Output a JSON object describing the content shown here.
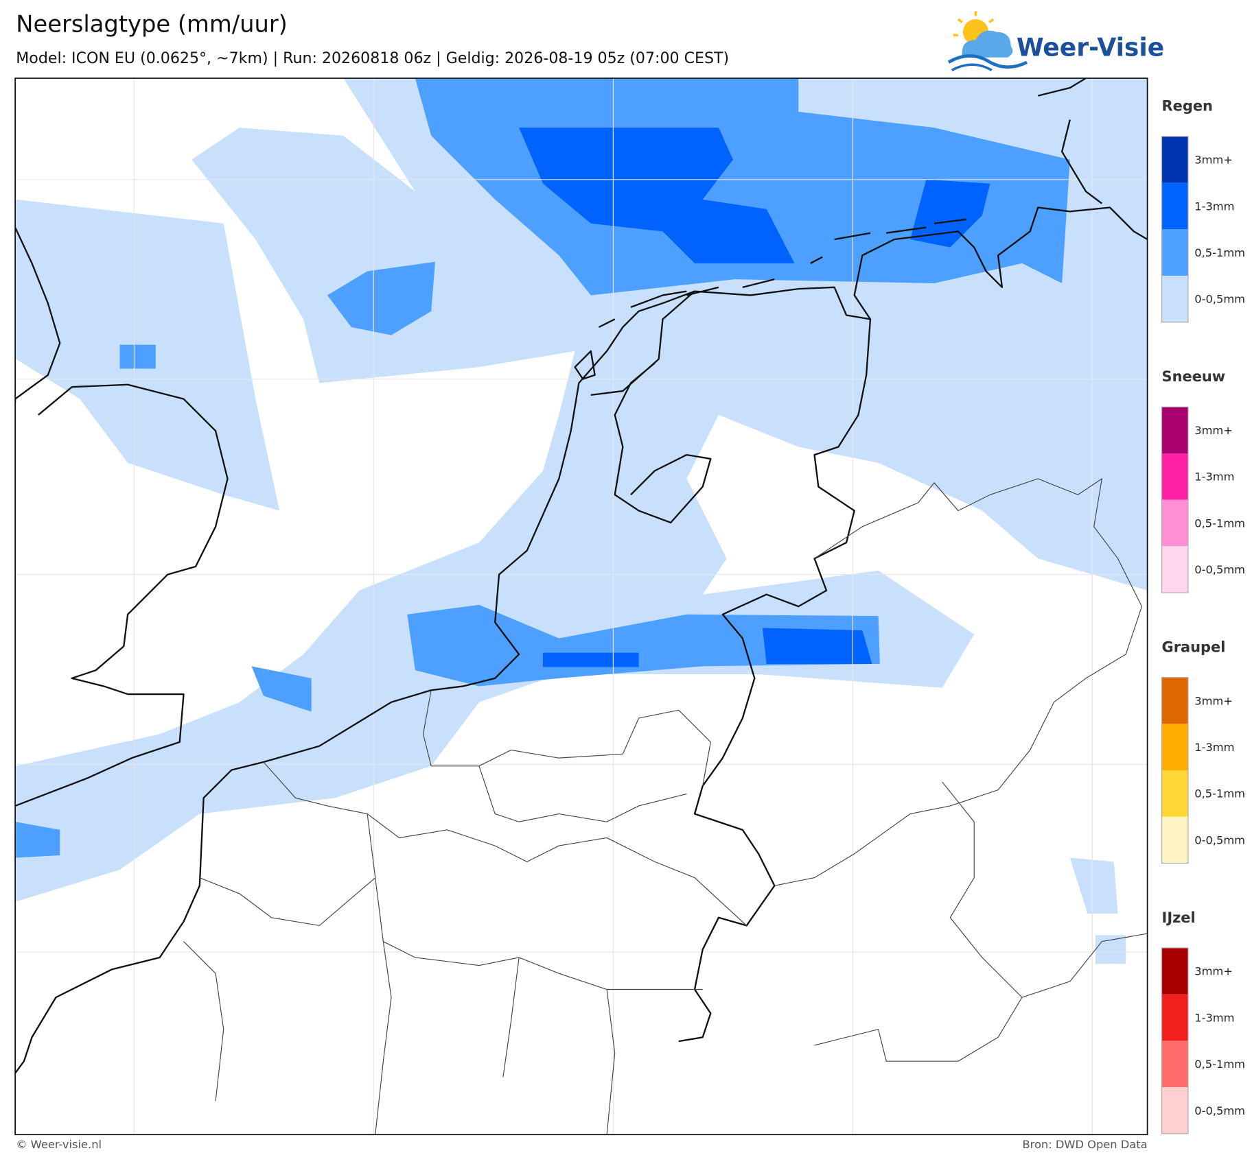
{
  "header": {
    "title": "Neerslagtype (mm/uur)",
    "subtitle": "Model: ICON EU (0.0625°, ~7km)  |  Run: 20260818 06z  |  Geldig: 2026-08-19 05z (07:00 CEST)",
    "logo": "Weer-Visie"
  },
  "legend": [
    {
      "name": "Regen",
      "items": [
        {
          "label": "3mm+",
          "color": "#0033b0"
        },
        {
          "label": "1-3mm",
          "color": "#0062ff"
        },
        {
          "label": "0,5-1mm",
          "color": "#4da0ff"
        },
        {
          "label": "0-0,5mm",
          "color": "#c8e0fc"
        }
      ]
    },
    {
      "name": "Sneeuw",
      "items": [
        {
          "label": "3mm+",
          "color": "#a8006e"
        },
        {
          "label": "1-3mm",
          "color": "#ff1fa6"
        },
        {
          "label": "0,5-1mm",
          "color": "#ff8fd2"
        },
        {
          "label": "0-0,5mm",
          "color": "#ffd6ef"
        }
      ]
    },
    {
      "name": "Graupel",
      "items": [
        {
          "label": "3mm+",
          "color": "#e06800"
        },
        {
          "label": "1-3mm",
          "color": "#ffab00"
        },
        {
          "label": "0,5-1mm",
          "color": "#ffd633"
        },
        {
          "label": "0-0,5mm",
          "color": "#fff3c4"
        }
      ]
    },
    {
      "name": "IJzel",
      "items": [
        {
          "label": "3mm+",
          "color": "#a80000"
        },
        {
          "label": "1-3mm",
          "color": "#f21f1f"
        },
        {
          "label": "0,5-1mm",
          "color": "#ff6b6b"
        },
        {
          "label": "0-0,5mm",
          "color": "#ffd0d0"
        }
      ]
    }
  ],
  "footer": {
    "left": "© Weer-visie.nl",
    "right": "Bron: DWD Open Data"
  }
}
